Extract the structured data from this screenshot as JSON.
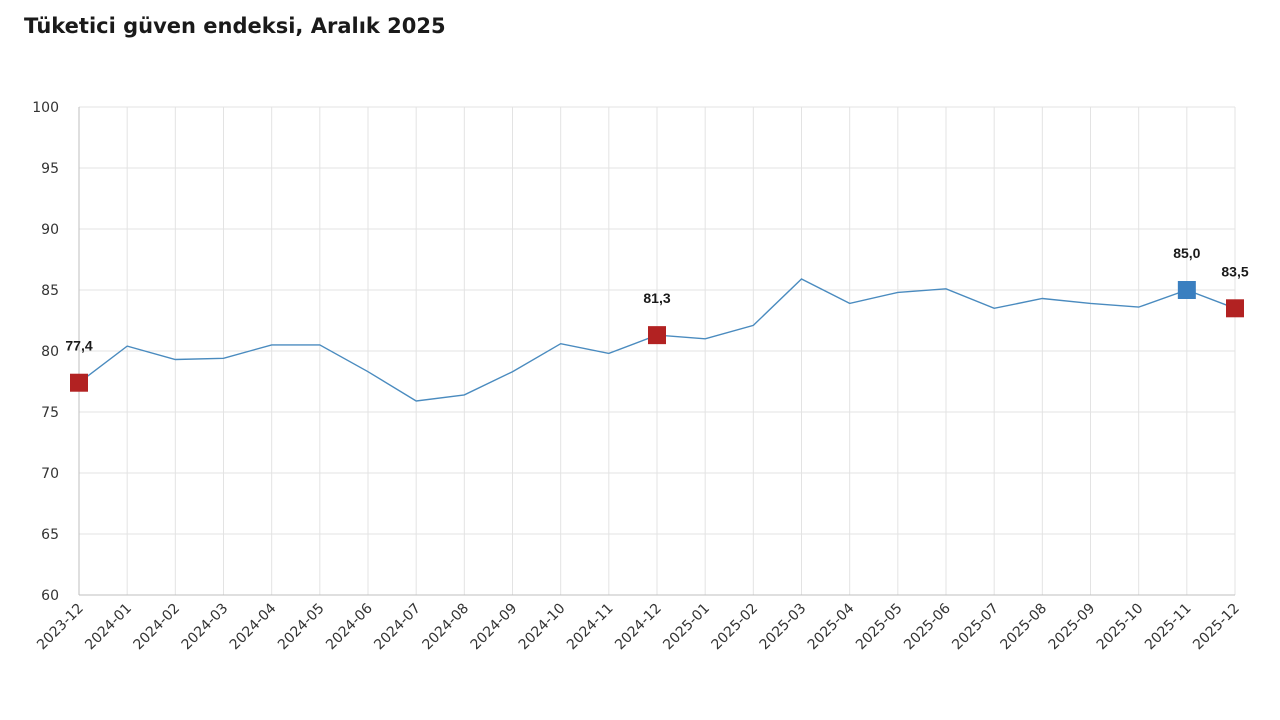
{
  "chart_data": {
    "type": "line",
    "title": "Tüketici güven endeksi, Aralık 2025",
    "xlabel": "",
    "ylabel": "",
    "ylim": [
      60,
      100
    ],
    "yticks": [
      60,
      65,
      70,
      75,
      80,
      85,
      90,
      95,
      100
    ],
    "grid": true,
    "legend": "none",
    "line_color": "#4a8bbf",
    "categories": [
      "2023-12",
      "2024-01",
      "2024-02",
      "2024-03",
      "2024-04",
      "2024-05",
      "2024-06",
      "2024-07",
      "2024-08",
      "2024-09",
      "2024-10",
      "2024-11",
      "2024-12",
      "2025-01",
      "2025-02",
      "2025-03",
      "2025-04",
      "2025-05",
      "2025-06",
      "2025-07",
      "2025-08",
      "2025-09",
      "2025-10",
      "2025-11",
      "2025-12"
    ],
    "series": [
      {
        "values": [
          77.4,
          80.4,
          79.3,
          79.4,
          80.5,
          80.5,
          78.3,
          75.9,
          76.4,
          78.3,
          80.6,
          79.8,
          81.3,
          81.0,
          82.1,
          85.9,
          83.9,
          84.8,
          85.1,
          83.5,
          84.3,
          83.9,
          83.6,
          85.0,
          83.5
        ]
      }
    ],
    "highlights": [
      {
        "index": 0,
        "label": "77,4",
        "color": "#b22222"
      },
      {
        "index": 12,
        "label": "81,3",
        "color": "#b22222"
      },
      {
        "index": 23,
        "label": "85,0",
        "color": "#3a7fc0"
      },
      {
        "index": 24,
        "label": "83,5",
        "color": "#b22222"
      }
    ]
  }
}
